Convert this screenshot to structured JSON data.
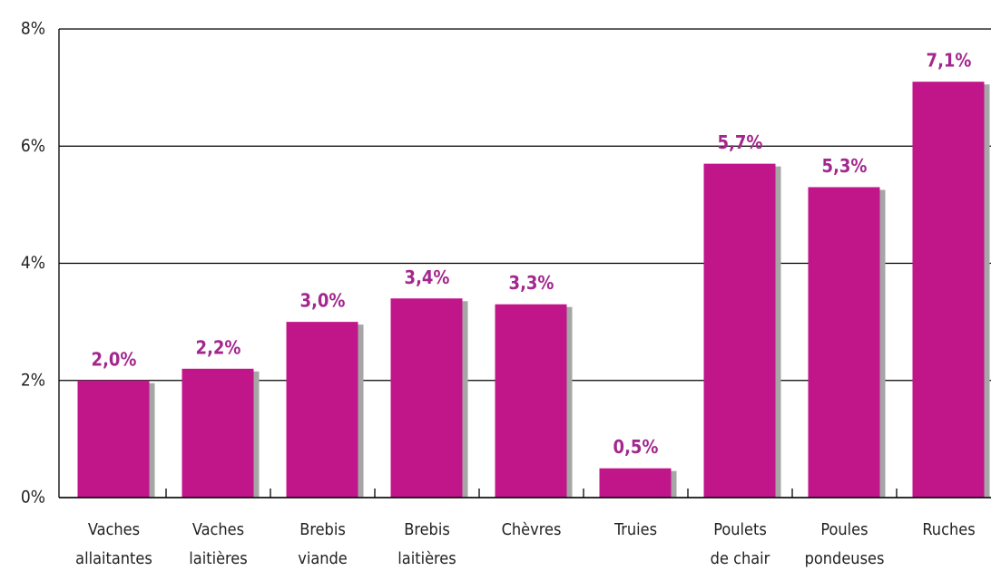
{
  "chart_data": {
    "type": "bar",
    "categories": [
      [
        "Vaches",
        "allaitantes"
      ],
      [
        "Vaches",
        "laitières"
      ],
      [
        "Brebis",
        "viande"
      ],
      [
        "Brebis",
        "laitières"
      ],
      [
        "Chèvres"
      ],
      [
        "Truies"
      ],
      [
        "Poulets",
        "de chair"
      ],
      [
        "Poules",
        "pondeuses"
      ],
      [
        "Ruches"
      ]
    ],
    "values": [
      2.0,
      2.2,
      3.0,
      3.4,
      3.3,
      0.5,
      5.7,
      5.3,
      7.1
    ],
    "value_labels": [
      "2,0%",
      "2,2%",
      "3,0%",
      "3,4%",
      "3,3%",
      "0,5%",
      "5,7%",
      "5,3%",
      "7,1%"
    ],
    "color": "#c0168a",
    "shadow_color": "#a6a6a6",
    "ylim": [
      0,
      8
    ],
    "yticks": [
      {
        "value": 0,
        "label": "0%"
      },
      {
        "value": 2,
        "label": "2%"
      },
      {
        "value": 4,
        "label": "4%"
      },
      {
        "value": 6,
        "label": "6%"
      },
      {
        "value": 8,
        "label": "8%"
      }
    ],
    "grid": true
  }
}
